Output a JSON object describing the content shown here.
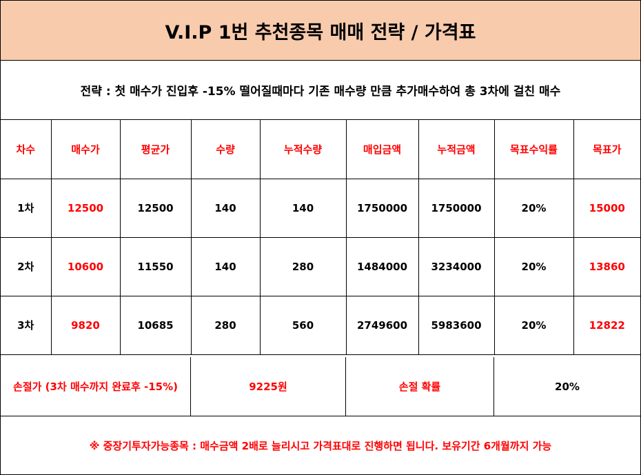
{
  "title": "V.I.P 1번 추천종목  매매 전략 / 가격표",
  "strategy": "전략 : 첫 매수가 진입후 -15% 떨어질때마다 기존 매수량 만큼 추가매수하여 총 3차에 걸친 매수",
  "table": {
    "headers": [
      "차수",
      "매수가",
      "평균가",
      "수량",
      "누적수량",
      "매입금액",
      "누적금액",
      "목표수익률",
      "목표가"
    ],
    "rows": [
      [
        "1차",
        "12500",
        "12500",
        "140",
        "140",
        "1750000",
        "1750000",
        "20%",
        "15000"
      ],
      [
        "2차",
        "10600",
        "11550",
        "140",
        "280",
        "1484000",
        "3234000",
        "20%",
        "13860"
      ],
      [
        "3차",
        "9820",
        "10685",
        "280",
        "560",
        "2749600",
        "5983600",
        "20%",
        "12822"
      ]
    ]
  },
  "loss": {
    "label": "손절가 (3차 매수까지 완료후 -15%)",
    "price": "9225원",
    "prob_label": "손절 확률",
    "prob_value": "20%"
  },
  "note": "※ 중장기투자가능종목 : 매수금액 2배로 늘리시고 가격표대로 진행하면 됩니다. 보유기간 6개월까지 가능",
  "colors": {
    "header_bg": "#f8cbad",
    "accent_red": "#ff0000"
  }
}
